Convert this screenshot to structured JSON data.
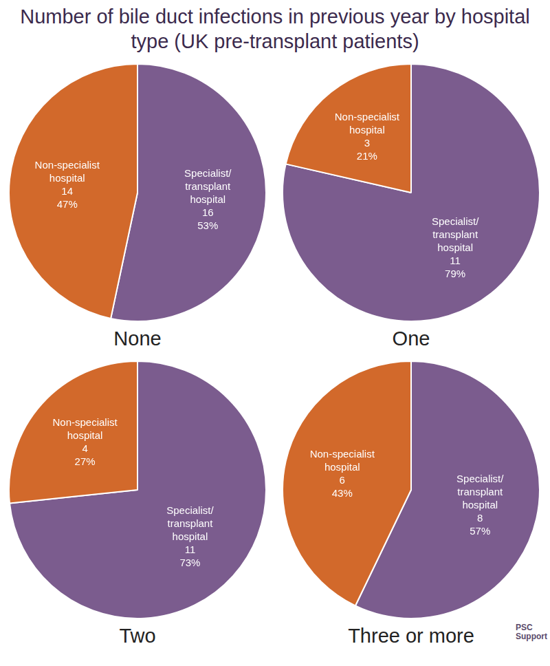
{
  "title": "Number of bile duct infections in previous year by hospital type (UK pre-transplant patients)",
  "logo": "PSC Support",
  "chart_data": [
    {
      "type": "pie",
      "title": "None",
      "categories": [
        "Specialist/transplant hospital",
        "Non-specialist hospital"
      ],
      "values": [
        16,
        14
      ],
      "value_labels": [
        [
          "16",
          "53%"
        ],
        [
          "14",
          "47%"
        ]
      ],
      "colors": [
        "#7b5c8e",
        "#d2692b"
      ],
      "data_labels": true
    },
    {
      "type": "pie",
      "title": "One",
      "categories": [
        "Specialist/transplant hospital",
        "Non-specialist hospital"
      ],
      "values": [
        11,
        3
      ],
      "value_labels": [
        [
          "11",
          "79%"
        ],
        [
          "3",
          "21%"
        ]
      ],
      "colors": [
        "#7b5c8e",
        "#d2692b"
      ],
      "data_labels": true
    },
    {
      "type": "pie",
      "title": "Two",
      "categories": [
        "Specialist/transplant hospital",
        "Non-specialist hospital"
      ],
      "values": [
        11,
        4
      ],
      "value_labels": [
        [
          "11",
          "73%"
        ],
        [
          "4",
          "27%"
        ]
      ],
      "colors": [
        "#7b5c8e",
        "#d2692b"
      ],
      "data_labels": true
    },
    {
      "type": "pie",
      "title": "Three or more",
      "categories": [
        "Specialist/transplant hospital",
        "Non-specialist hospital"
      ],
      "values": [
        8,
        6
      ],
      "value_labels": [
        [
          "8",
          "57%"
        ],
        [
          "6",
          "43%"
        ]
      ],
      "colors": [
        "#7b5c8e",
        "#d2692b"
      ],
      "data_labels": true
    }
  ]
}
